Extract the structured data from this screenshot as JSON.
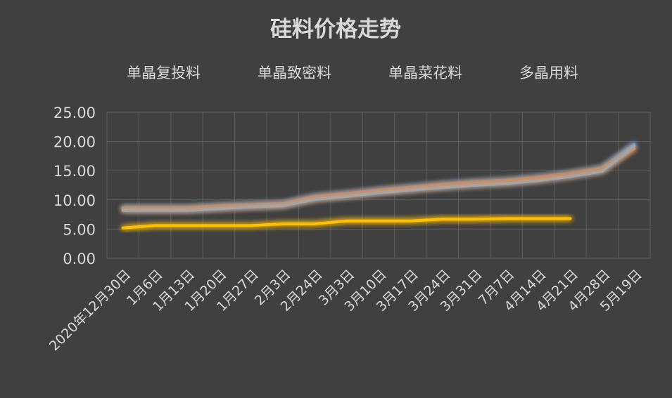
{
  "chart_data": {
    "type": "line",
    "title": "硅料价格走势",
    "categories": [
      "2020年12月30日",
      "1月6日",
      "1月13日",
      "1月20日",
      "1月27日",
      "2月3日",
      "2月24日",
      "3月3日",
      "3月10日",
      "3月17日",
      "3月24日",
      "3月31日",
      "7月7日",
      "4月14日",
      "4月21日",
      "4月28日",
      "5月19日"
    ],
    "series": [
      {
        "name": "单晶复投料",
        "color": "#5b9bd5",
        "values": [
          8.7,
          8.7,
          8.7,
          9.0,
          9.2,
          9.4,
          10.6,
          11.1,
          11.7,
          12.2,
          12.7,
          13.1,
          13.4,
          13.9,
          14.6,
          15.5,
          19.5
        ]
      },
      {
        "name": "单晶致密料",
        "color": "#ed7d31",
        "values": [
          8.5,
          8.5,
          8.5,
          8.8,
          9.0,
          9.2,
          10.4,
          10.9,
          11.5,
          12.0,
          12.5,
          12.9,
          13.2,
          13.7,
          14.4,
          15.3,
          18.8
        ]
      },
      {
        "name": "单晶菜花料",
        "color": "#a5a5a5",
        "values": [
          8.2,
          8.2,
          8.2,
          8.5,
          8.8,
          9.0,
          10.1,
          10.6,
          11.2,
          11.7,
          12.1,
          12.5,
          12.8,
          13.3,
          14.0,
          14.9,
          19.2
        ]
      },
      {
        "name": "多晶用料",
        "color": "#ffc000",
        "values": [
          5.2,
          5.6,
          5.6,
          5.6,
          5.6,
          5.9,
          5.9,
          6.4,
          6.4,
          6.4,
          6.7,
          6.7,
          6.8,
          6.8,
          6.8,
          null,
          null
        ]
      }
    ],
    "y_ticks": [
      "0.00",
      "5.00",
      "10.00",
      "15.00",
      "20.00",
      "25.00"
    ],
    "ylim": [
      0,
      25
    ],
    "grid": true,
    "legend_position": "top"
  }
}
